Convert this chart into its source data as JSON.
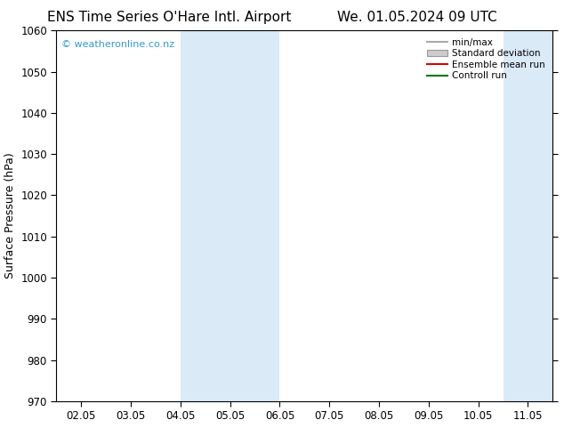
{
  "title_left": "ENS Time Series O'Hare Intl. Airport",
  "title_right": "We. 01.05.2024 09 UTC",
  "ylabel": "Surface Pressure (hPa)",
  "ylim": [
    970,
    1060
  ],
  "yticks": [
    970,
    980,
    990,
    1000,
    1010,
    1020,
    1030,
    1040,
    1050,
    1060
  ],
  "xtick_positions": [
    2,
    3,
    4,
    5,
    6,
    7,
    8,
    9,
    10,
    11
  ],
  "xtick_labels": [
    "02.05",
    "03.05",
    "04.05",
    "05.05",
    "06.05",
    "07.05",
    "08.05",
    "09.05",
    "10.05",
    "11.05"
  ],
  "xlim": [
    1.5,
    11.5
  ],
  "shade_bands": [
    {
      "xstart": 4.0,
      "xend": 4.5,
      "color": "#daeaf7"
    },
    {
      "xstart": 4.5,
      "xend": 6.0,
      "color": "#daeaf7"
    },
    {
      "xstart": 10.5,
      "xend": 11.5,
      "color": "#daeaf7"
    }
  ],
  "shade_bands2": [
    {
      "xstart": 4.0,
      "xend": 6.0,
      "color": "#daeaf7"
    },
    {
      "xstart": 10.5,
      "xend": 11.5,
      "color": "#daeaf7"
    }
  ],
  "legend_entries": [
    {
      "label": "min/max",
      "color": "#aaaaaa",
      "type": "line"
    },
    {
      "label": "Standard deviation",
      "color": "#cccccc",
      "type": "fill"
    },
    {
      "label": "Ensemble mean run",
      "color": "#dd0000",
      "type": "line"
    },
    {
      "label": "Controll run",
      "color": "#007700",
      "type": "line"
    }
  ],
  "watermark": "© weatheronline.co.nz",
  "watermark_color": "#3399cc",
  "background_color": "#ffffff",
  "title_fontsize": 11,
  "axis_fontsize": 9,
  "tick_fontsize": 8.5
}
